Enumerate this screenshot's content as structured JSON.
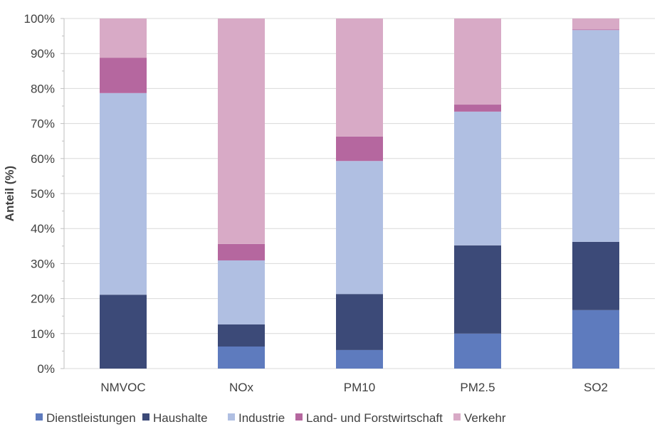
{
  "chart_data": {
    "type": "bar",
    "stacked": true,
    "categories": [
      "NMVOC",
      "NOx",
      "PM10",
      "PM2.5",
      "SO2"
    ],
    "ylabel": "Anteil (%)",
    "xlabel": "",
    "ylim": [
      0,
      100
    ],
    "yticks": [
      "0%",
      "10%",
      "20%",
      "30%",
      "40%",
      "50%",
      "60%",
      "70%",
      "80%",
      "90%",
      "100%"
    ],
    "grid": true,
    "legend": "bottom",
    "series": [
      {
        "name": "Dienstleistungen",
        "color": "#5E7BBE",
        "values": [
          0,
          6.3,
          5.3,
          10.0,
          16.7
        ]
      },
      {
        "name": "Haushalte",
        "color": "#3C4A78",
        "values": [
          21.1,
          6.3,
          16.0,
          25.2,
          19.5
        ]
      },
      {
        "name": "Industrie",
        "color": "#B0BFE2",
        "values": [
          57.6,
          18.3,
          38.0,
          38.2,
          60.5
        ]
      },
      {
        "name": "Land- und Forstwirtschaft",
        "color": "#B5679F",
        "values": [
          10.1,
          4.7,
          7.0,
          2.0,
          0.2
        ]
      },
      {
        "name": "Verkehr",
        "color": "#D8AAC6",
        "values": [
          11.2,
          64.4,
          33.7,
          24.6,
          3.1
        ]
      }
    ]
  }
}
